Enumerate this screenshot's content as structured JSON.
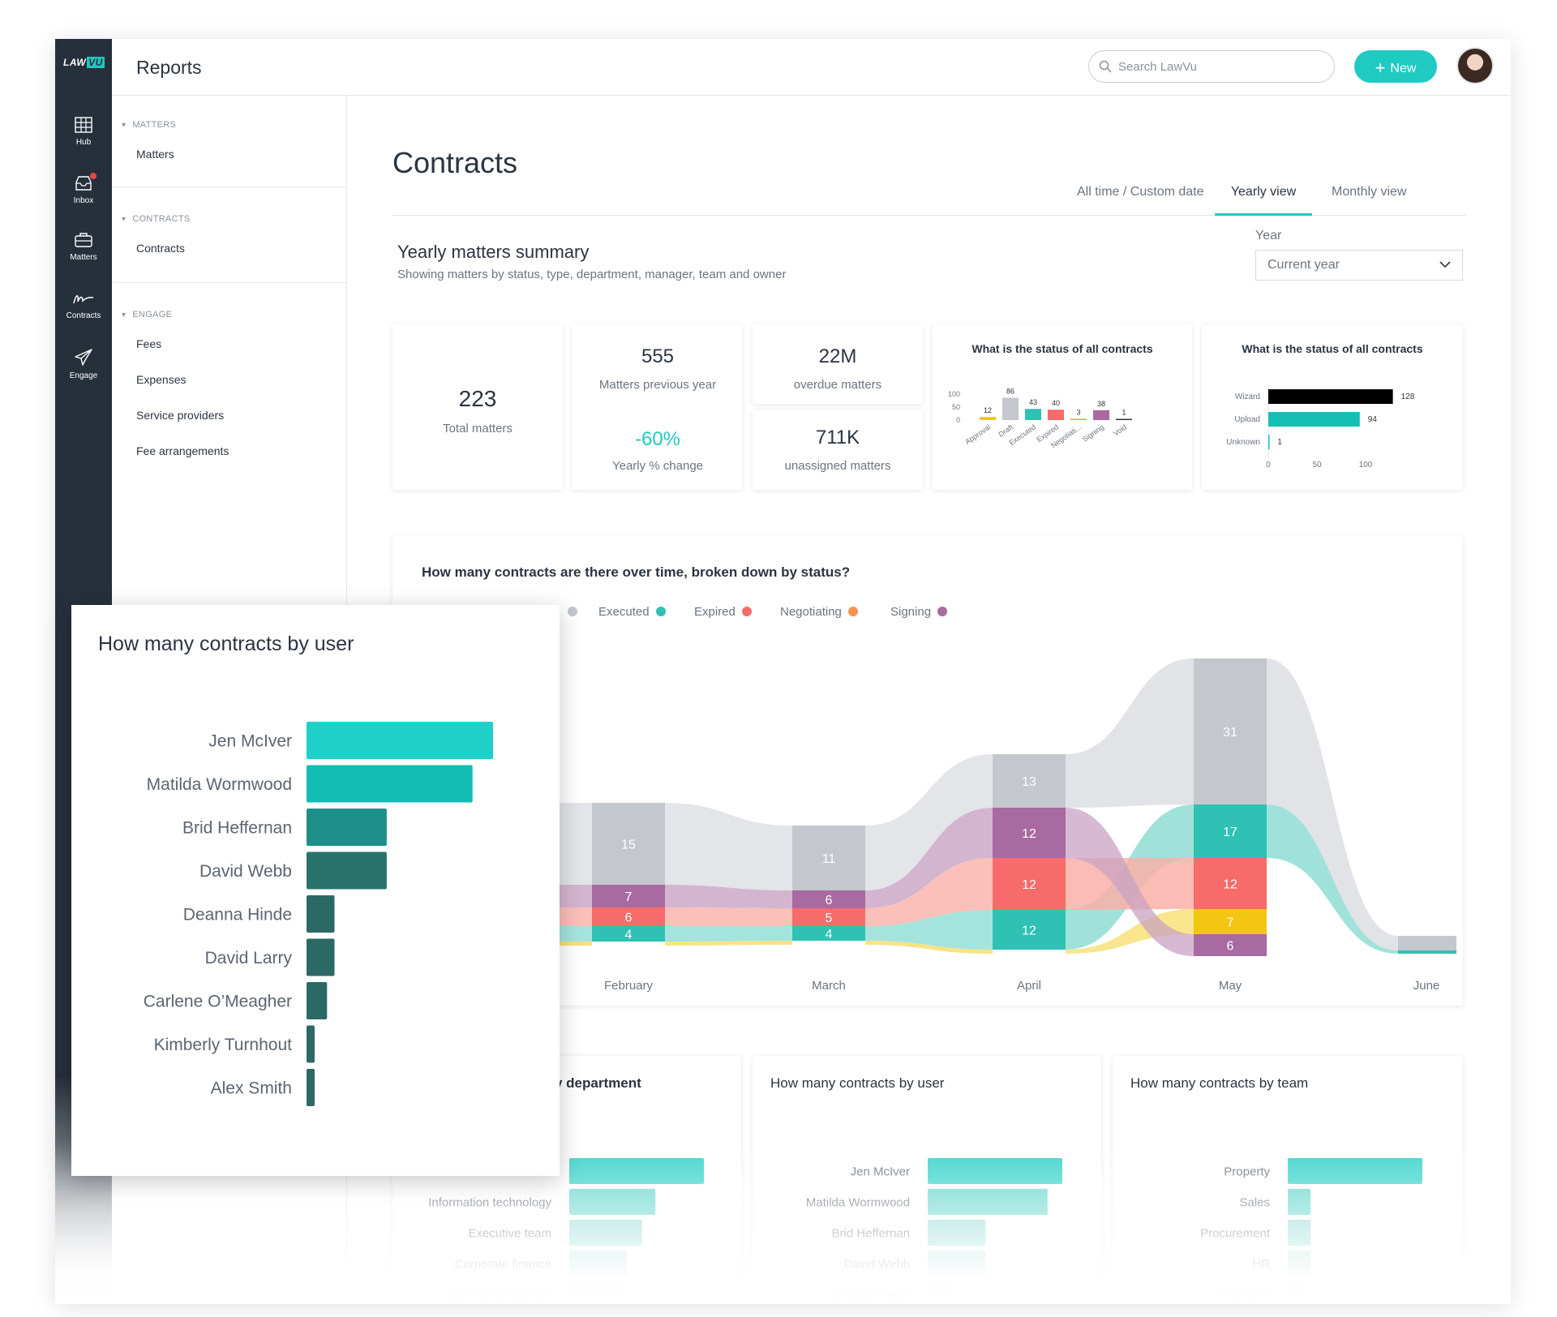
{
  "app": {
    "logo": "LAW",
    "logo_accent": "VU",
    "section_title": "Reports"
  },
  "rail": [
    {
      "label": "Hub",
      "icon": "grid-icon"
    },
    {
      "label": "Inbox",
      "icon": "inbox-icon"
    },
    {
      "label": "Matters",
      "icon": "briefcase-icon"
    },
    {
      "label": "Contracts",
      "icon": "signature-icon"
    },
    {
      "label": "Engage",
      "icon": "paper-plane-icon"
    }
  ],
  "header": {
    "search_placeholder": "Search LawVu",
    "new_label": "New"
  },
  "subnav": {
    "sections": [
      {
        "heading": "MATTERS",
        "items": [
          "Matters"
        ]
      },
      {
        "heading": "CONTRACTS",
        "items": [
          "Contracts"
        ]
      },
      {
        "heading": "ENGAGE",
        "items": [
          "Fees",
          "Expenses",
          "Service providers",
          "Fee arrangements"
        ]
      }
    ]
  },
  "page": {
    "title": "Contracts",
    "tabs": [
      "All time / Custom date",
      "Yearly view",
      "Monthly view"
    ],
    "active_tab": "Yearly view",
    "summary_title": "Yearly matters summary",
    "summary_sub": "Showing matters by status, type, department, manager, team and owner",
    "year_label": "Year",
    "year_value": "Current year"
  },
  "stats": {
    "total": {
      "value": "223",
      "label": "Total matters"
    },
    "previous": {
      "value": "555",
      "label": "Matters previous year"
    },
    "change": {
      "value": "-60%",
      "label": "Yearly % change"
    },
    "overdue": {
      "value": "22M",
      "label": "overdue matters"
    },
    "unassigned": {
      "value": "711K",
      "label": "unassigned matters"
    }
  },
  "colors": {
    "teal": "#1fcac3",
    "grey": "#c4c7ce",
    "executed": "#2fc1b3",
    "expired": "#f76b6b",
    "negotiating": "#f8924f",
    "signing": "#a86aa0",
    "approval": "#f3c614",
    "black": "#000000",
    "upload": "#14bfb1"
  },
  "chart_data": [
    {
      "type": "bar",
      "title": "What is the status of all contracts",
      "categories": [
        "Approval",
        "Draft",
        "Executed",
        "Expired",
        "Negotiati...",
        "Signing",
        "Void"
      ],
      "values": [
        12,
        86,
        43,
        40,
        3,
        38,
        1
      ],
      "yticks": [
        "100",
        "50",
        "0"
      ],
      "ylim": [
        0,
        100
      ]
    },
    {
      "type": "bar",
      "orientation": "horizontal",
      "title": "What is the status of all contracts",
      "categories": [
        "Wizard",
        "Upload",
        "Unknown"
      ],
      "values": [
        128,
        94,
        1
      ],
      "xticks": [
        "0",
        "50",
        "100"
      ],
      "xlim": [
        0,
        150
      ]
    },
    {
      "type": "area",
      "title": "How many  contracts are there over time, broken down by status?",
      "legend": [
        "Executed",
        "Expired",
        "Negotiating",
        "Signing"
      ],
      "categories": [
        "February",
        "March",
        "April",
        "May",
        "June"
      ],
      "columns": [
        {
          "month": "February",
          "segments": [
            {
              "label": "4"
            },
            {
              "label": "6"
            },
            {
              "label": "7"
            },
            {
              "label": "15"
            }
          ]
        },
        {
          "month": "March",
          "segments": [
            {
              "label": "4"
            },
            {
              "label": "5"
            },
            {
              "label": "6"
            },
            {
              "label": "11"
            }
          ]
        },
        {
          "month": "April",
          "segments": [
            {
              "label": "12"
            },
            {
              "label": "12"
            },
            {
              "label": "12"
            },
            {
              "label": "13"
            }
          ]
        },
        {
          "month": "May",
          "segments": [
            {
              "label": "6"
            },
            {
              "label": "7"
            },
            {
              "label": "12"
            },
            {
              "label": "17"
            },
            {
              "label": "31"
            }
          ]
        }
      ]
    },
    {
      "type": "bar",
      "orientation": "horizontal",
      "title": "How many contracts by user",
      "categories": [
        "Jen McIver",
        "Matilda Wormwood",
        "Brid Heffernan",
        "David Webb",
        "Deanna Hinde",
        "David Larry",
        "Carlene O’Meagher",
        "Kimberly Turnhout",
        "Alex Smith"
      ],
      "values": [
        100,
        89,
        43,
        43,
        15,
        15,
        11,
        4,
        4
      ]
    },
    {
      "type": "bar",
      "orientation": "horizontal",
      "title_suffix": "y department",
      "categories": [
        "",
        "Information technology",
        "Executive team",
        "Corporate finance",
        "Operations internal"
      ],
      "values": [
        100,
        64,
        54,
        43,
        37
      ]
    },
    {
      "type": "bar",
      "orientation": "horizontal",
      "title": "How many contracts by user",
      "categories": [
        "Jen McIver",
        "Matilda Wormwood",
        "Brid Heffernan",
        "David Webb",
        "Deanna Hinde"
      ],
      "values": [
        100,
        89,
        43,
        43,
        15
      ]
    },
    {
      "type": "bar",
      "orientation": "horizontal",
      "title": "How many contracts by team",
      "categories": [
        "Property",
        "Sales",
        "Procurement",
        "HR",
        "Contracts"
      ],
      "values": [
        100,
        17,
        17,
        17,
        13
      ]
    }
  ]
}
